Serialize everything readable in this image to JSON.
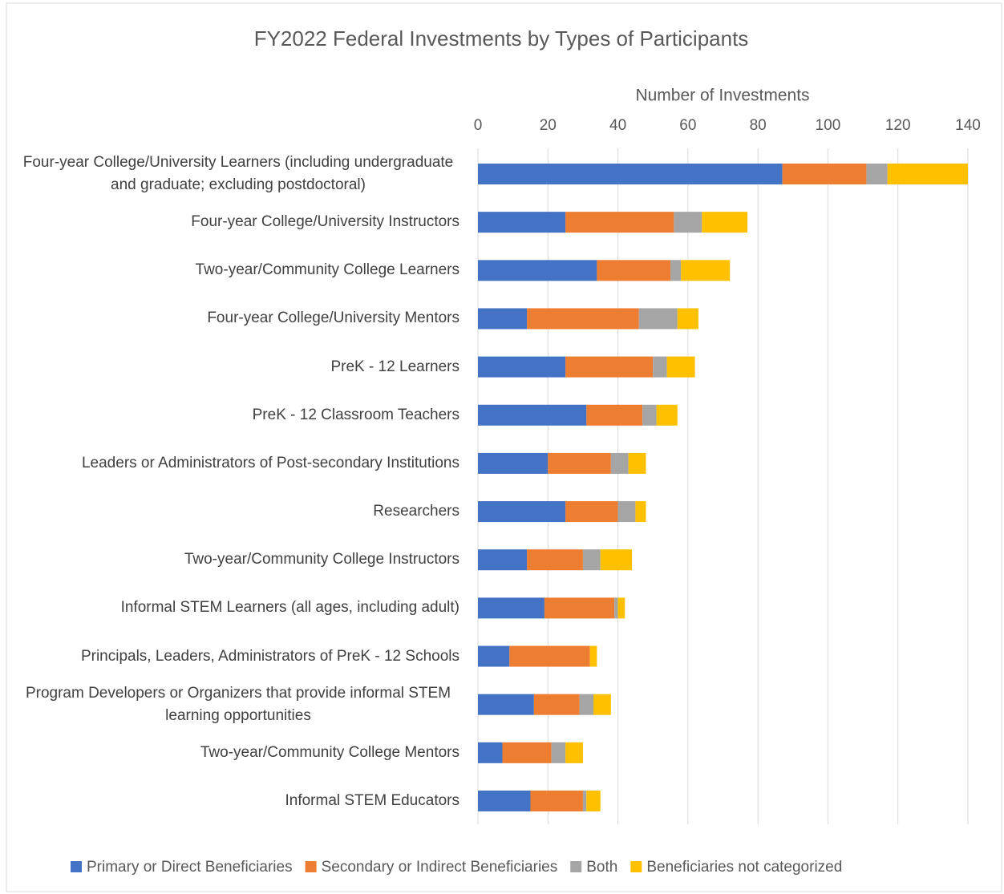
{
  "chart_data": {
    "type": "stacked_barh",
    "title": "FY2022 Federal Investments by Types of Participants",
    "x_label": "Number of Investments",
    "categories": [
      "Four-year College/University Learners (including undergraduate and graduate; excluding postdoctoral)",
      "Four-year College/University Instructors",
      "Two-year/Community College Learners",
      "Four-year College/University Mentors",
      "PreK - 12 Learners",
      "PreK - 12 Classroom Teachers",
      "Leaders or Administrators of Post-secondary Institutions",
      "Researchers",
      "Two-year/Community College Instructors",
      "Informal STEM Learners (all ages, including adult)",
      "Principals, Leaders, Administrators of PreK - 12 Schools",
      "Program Developers or Organizers that provide informal STEM learning opportunities",
      "Two-year/Community College Mentors",
      "Informal STEM Educators"
    ],
    "series": [
      {
        "name": "Primary or Direct Beneficiaries",
        "color": "#4472c4",
        "values": [
          87,
          25,
          34,
          14,
          25,
          31,
          20,
          25,
          14,
          19,
          9,
          16,
          7,
          15
        ]
      },
      {
        "name": "Secondary or Indirect Beneficiaries",
        "color": "#ed7d31",
        "values": [
          24,
          31,
          21,
          32,
          25,
          16,
          18,
          15,
          16,
          20,
          23,
          13,
          14,
          15
        ]
      },
      {
        "name": "Both",
        "color": "#a5a5a5",
        "values": [
          6,
          8,
          3,
          11,
          4,
          4,
          5,
          5,
          5,
          1,
          0,
          4,
          4,
          1
        ]
      },
      {
        "name": "Beneficiaries not categorized",
        "color": "#ffc000",
        "values": [
          23,
          13,
          14,
          6,
          8,
          6,
          5,
          3,
          9,
          2,
          2,
          5,
          5,
          4
        ]
      }
    ],
    "xlim": [
      0,
      140
    ],
    "xticks": [
      0,
      20,
      40,
      60,
      80,
      100,
      120,
      140
    ],
    "grid": true,
    "legend": "bottom"
  }
}
